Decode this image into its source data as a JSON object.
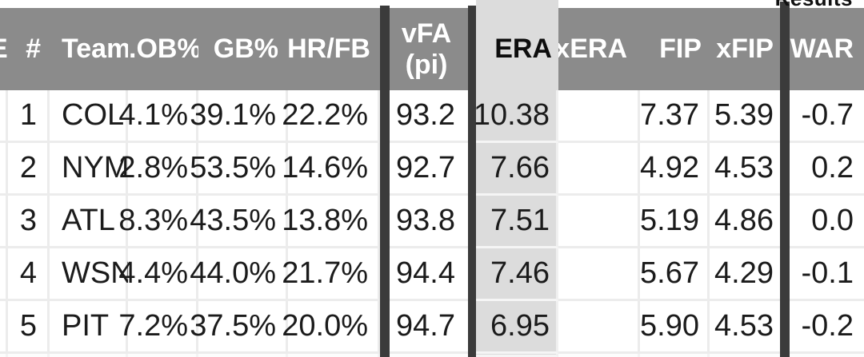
{
  "top": {
    "results_label": "Results"
  },
  "header": {
    "clipped_left_label": "E",
    "columns": [
      {
        "key": "rank",
        "label": "#"
      },
      {
        "key": "team",
        "label": "Team"
      },
      {
        "key": "ob",
        "label": ".OB%"
      },
      {
        "key": "gb",
        "label": "GB%"
      },
      {
        "key": "hrfb",
        "label": "HR/FB"
      },
      {
        "key": "vfa",
        "label_line1": "vFA",
        "label_line2": "(pi)"
      },
      {
        "key": "era",
        "label": "ERA",
        "highlighted": true
      },
      {
        "key": "xera",
        "label": "xERA"
      },
      {
        "key": "fip",
        "label": "FIP"
      },
      {
        "key": "xfip",
        "label": "xFIP"
      },
      {
        "key": "war",
        "label": "WAR"
      }
    ]
  },
  "rows": [
    {
      "rank": "1",
      "team": "COL",
      "ob": "4.1%",
      "gb": "39.1%",
      "hrfb": "22.2%",
      "vfa": "93.2",
      "era": "10.38",
      "xera": "",
      "fip": "7.37",
      "xfip": "5.39",
      "war": "-0.7"
    },
    {
      "rank": "2",
      "team": "NYM",
      "ob": "2.8%",
      "gb": "53.5%",
      "hrfb": "14.6%",
      "vfa": "92.7",
      "era": "7.66",
      "xera": "",
      "fip": "4.92",
      "xfip": "4.53",
      "war": "0.2"
    },
    {
      "rank": "3",
      "team": "ATL",
      "ob": "8.3%",
      "gb": "43.5%",
      "hrfb": "13.8%",
      "vfa": "93.8",
      "era": "7.51",
      "xera": "",
      "fip": "5.19",
      "xfip": "4.86",
      "war": "0.0"
    },
    {
      "rank": "4",
      "team": "WSN",
      "ob": "4.4%",
      "gb": "44.0%",
      "hrfb": "21.7%",
      "vfa": "94.4",
      "era": "7.46",
      "xera": "",
      "fip": "5.67",
      "xfip": "4.29",
      "war": "-0.1"
    },
    {
      "rank": "5",
      "team": "PIT",
      "ob": "7.2%",
      "gb": "37.5%",
      "hrfb": "20.0%",
      "vfa": "94.7",
      "era": "6.95",
      "xera": "",
      "fip": "5.90",
      "xfip": "4.53",
      "war": "-0.2"
    }
  ],
  "colors": {
    "header_bg": "#8b8b8b",
    "header_text": "#ffffff",
    "highlight_column_bg": "#dcdcdc",
    "divider_bar": "#3b3b3b",
    "row_bg": "#ffffff",
    "grid_line": "#ececec",
    "text": "#1b1b1b"
  }
}
